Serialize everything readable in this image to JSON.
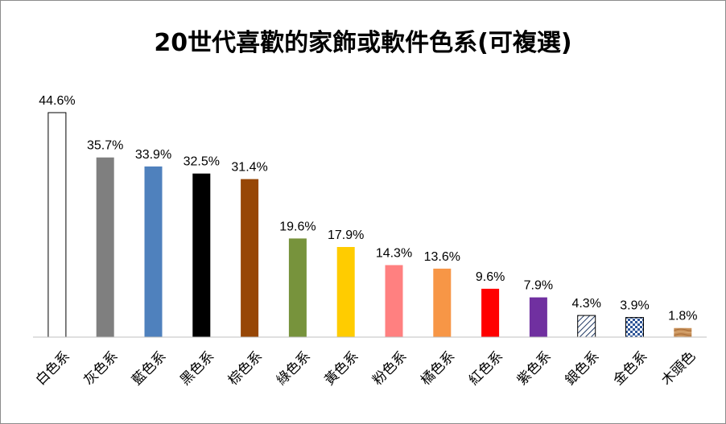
{
  "chart_data": {
    "type": "bar",
    "title": "20世代喜歡的家飾或軟件色系(可複選)",
    "xlabel": "",
    "ylabel": "",
    "ylim": [
      0,
      50
    ],
    "grid": false,
    "legend": "none",
    "categories": [
      "白色系",
      "灰色系",
      "藍色系",
      "黑色系",
      "棕色系",
      "綠色系",
      "黃色系",
      "粉色系",
      "橘色系",
      "紅色系",
      "紫色系",
      "銀色系",
      "金色系",
      "木頭色"
    ],
    "values": [
      44.6,
      35.7,
      33.9,
      32.5,
      31.4,
      19.6,
      17.9,
      14.3,
      13.6,
      9.6,
      7.9,
      4.3,
      3.9,
      1.8
    ],
    "value_labels": [
      "44.6%",
      "35.7%",
      "33.9%",
      "32.5%",
      "31.4%",
      "19.6%",
      "17.9%",
      "14.3%",
      "13.6%",
      "9.6%",
      "7.9%",
      "4.3%",
      "3.9%",
      "1.8%"
    ],
    "bar_fills": [
      "#ffffff",
      "#7f7f7f",
      "#4f81bd",
      "#000000",
      "#974706",
      "#77933c",
      "#ffcc00",
      "#ff8080",
      "#f79646",
      "#ff0000",
      "#7030a0",
      "pattern-diagonal",
      "pattern-checker",
      "pattern-wood"
    ],
    "bar_strokes": [
      "#000000",
      "none",
      "none",
      "none",
      "none",
      "none",
      "none",
      "none",
      "none",
      "none",
      "none",
      "#000000",
      "#000000",
      "none"
    ]
  }
}
